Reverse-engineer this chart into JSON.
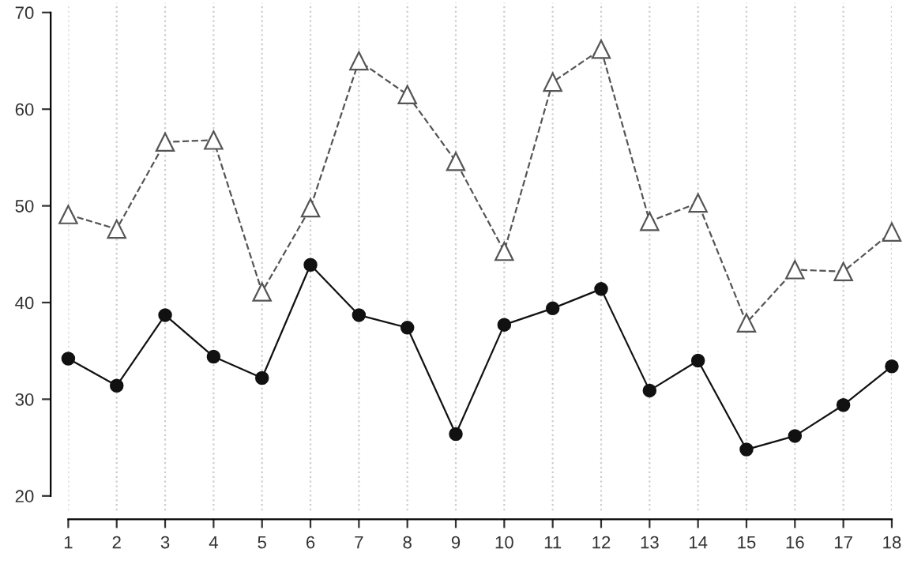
{
  "chart_data": {
    "type": "line",
    "x": [
      1,
      2,
      3,
      4,
      5,
      6,
      7,
      8,
      9,
      10,
      11,
      12,
      13,
      14,
      15,
      16,
      17,
      18
    ],
    "series": [
      {
        "color": "#555555",
        "marker": "triangle",
        "line_style": "dashed",
        "values": [
          49.1,
          47.6,
          56.6,
          56.8,
          41.1,
          49.8,
          65.0,
          61.5,
          54.6,
          45.3,
          62.8,
          66.2,
          48.4,
          50.3,
          37.9,
          43.4,
          43.2,
          47.3
        ]
      },
      {
        "color": "#111111",
        "marker": "circle",
        "line_style": "solid",
        "values": [
          34.2,
          31.4,
          38.7,
          34.4,
          32.2,
          43.9,
          38.7,
          37.4,
          26.4,
          37.7,
          39.4,
          41.4,
          30.9,
          34.0,
          24.8,
          26.2,
          29.4,
          33.4
        ]
      }
    ],
    "xlim": [
      1,
      18
    ],
    "xticks": [
      1,
      2,
      3,
      4,
      5,
      6,
      7,
      8,
      9,
      10,
      11,
      12,
      13,
      14,
      15,
      16,
      17,
      18
    ],
    "ylim": [
      18.5,
      71
    ],
    "yticks": [
      20,
      30,
      40,
      50,
      60,
      70
    ],
    "grid": "x"
  }
}
